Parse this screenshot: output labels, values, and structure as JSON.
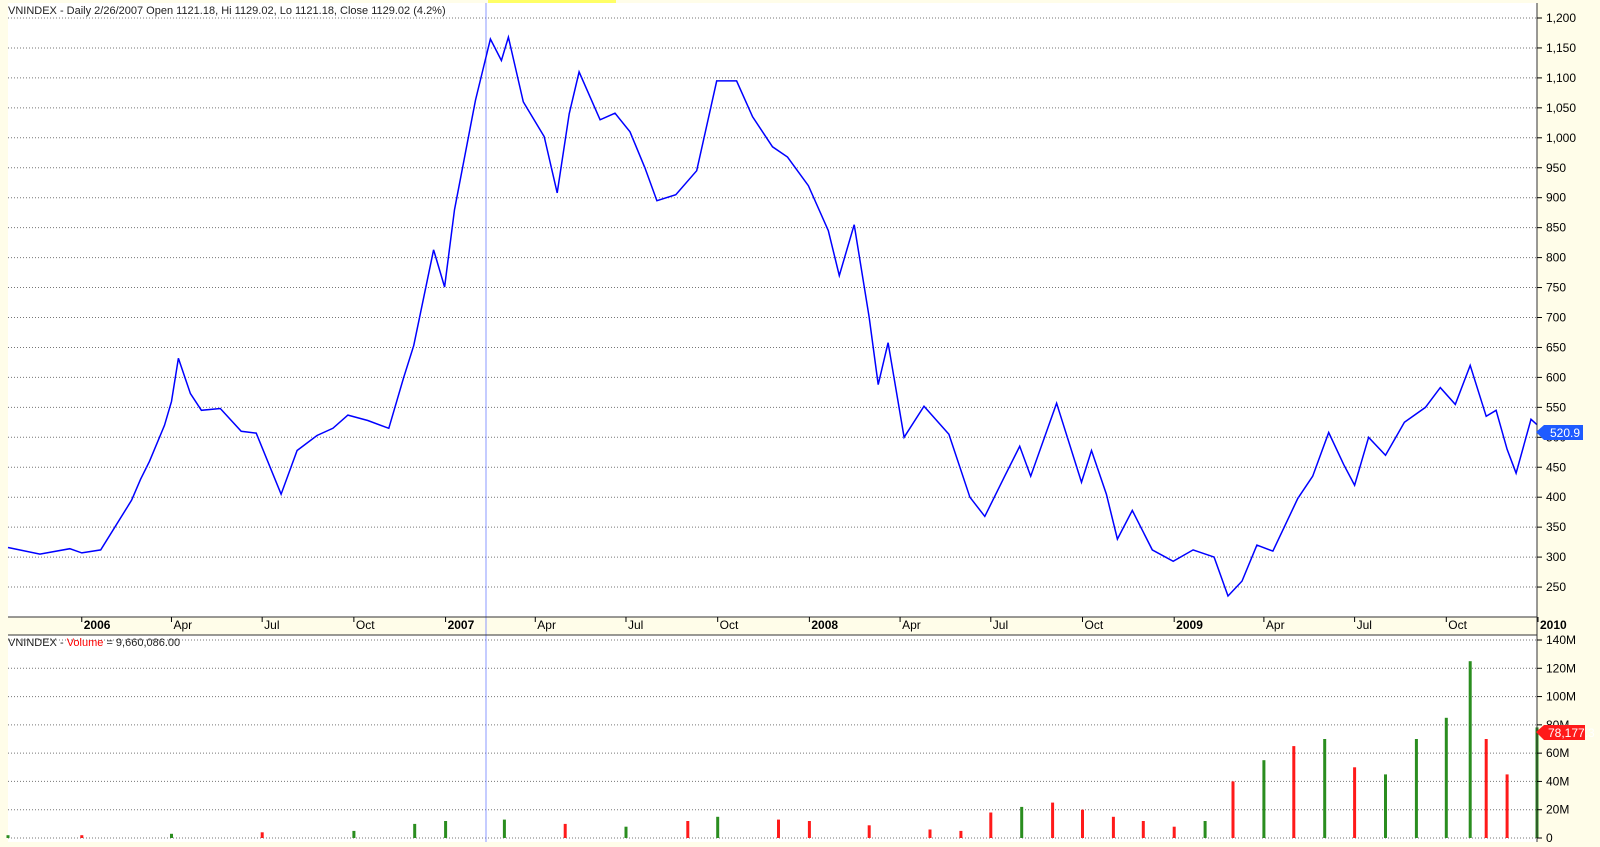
{
  "header": {
    "price_title": "VNINDEX - Daily 2/26/2007 Open 1121.18, Hi 1129.02, Lo 1121.18, Close 1129.02 (4.2%)",
    "volume_ticker": "VNINDEX -",
    "volume_label": "Volume",
    "volume_value": "= 9,660,086.00"
  },
  "colors": {
    "price_line": "#0000ff",
    "volume_up": "#2a8d1f",
    "volume_down": "#ff1a1a",
    "last_price_label": "#1e5bff",
    "last_volume_label": "#ff1a1a",
    "cursor": "#6f7fff"
  },
  "labels": {
    "last_price": "520.9",
    "last_volume": "78,177.3"
  },
  "axes": {
    "price_ticks": [
      "1,200",
      "1,150",
      "1,100",
      "1,050",
      "1,000",
      "950",
      "900",
      "850",
      "800",
      "750",
      "700",
      "650",
      "600",
      "550",
      "500",
      "450",
      "400",
      "350",
      "300",
      "250"
    ],
    "volume_ticks": [
      "140M",
      "120M",
      "100M",
      "80M",
      "60M",
      "40M",
      "20M",
      "0"
    ],
    "dates": [
      {
        "label": "2006",
        "year": true
      },
      {
        "label": "Apr",
        "year": false
      },
      {
        "label": "Jul",
        "year": false
      },
      {
        "label": "Oct",
        "year": false
      },
      {
        "label": "2007",
        "year": true
      },
      {
        "label": "Apr",
        "year": false
      },
      {
        "label": "Jul",
        "year": false
      },
      {
        "label": "Oct",
        "year": false
      },
      {
        "label": "2008",
        "year": true
      },
      {
        "label": "Apr",
        "year": false
      },
      {
        "label": "Jul",
        "year": false
      },
      {
        "label": "Oct",
        "year": false
      },
      {
        "label": "2009",
        "year": true
      },
      {
        "label": "Apr",
        "year": false
      },
      {
        "label": "Jul",
        "year": false
      },
      {
        "label": "Oct",
        "year": false
      },
      {
        "label": "2010",
        "year": true
      }
    ]
  },
  "chart_data": [
    {
      "type": "line",
      "title": "VNINDEX - Daily 2/26/2007 Open 1121.18, Hi 1129.02, Lo 1121.18, Close 1129.02 (4.2%)",
      "xlabel": "",
      "ylabel": "",
      "ylim": [
        200,
        1200
      ],
      "x_range": [
        "2005-10-19",
        "2009-12-31"
      ],
      "grid": true,
      "series": [
        {
          "name": "VNINDEX",
          "values": [
            [
              "2005-10-19",
              316
            ],
            [
              "2005-11-20",
              305
            ],
            [
              "2005-12-20",
              314
            ],
            [
              "2006-01-01",
              307
            ],
            [
              "2006-01-20",
              312
            ],
            [
              "2006-02-20",
              395
            ],
            [
              "2006-03-01",
              430
            ],
            [
              "2006-03-10",
              460
            ],
            [
              "2006-03-25",
              520
            ],
            [
              "2006-04-01",
              560
            ],
            [
              "2006-04-08",
              632
            ],
            [
              "2006-04-20",
              573
            ],
            [
              "2006-05-01",
              545
            ],
            [
              "2006-05-20",
              548
            ],
            [
              "2006-06-10",
              510
            ],
            [
              "2006-06-25",
              507
            ],
            [
              "2006-07-20",
              405
            ],
            [
              "2006-08-05",
              478
            ],
            [
              "2006-08-25",
              503
            ],
            [
              "2006-09-10",
              515
            ],
            [
              "2006-09-25",
              537
            ],
            [
              "2006-10-15",
              528
            ],
            [
              "2006-11-05",
              515
            ],
            [
              "2006-11-20",
              600
            ],
            [
              "2006-11-30",
              653
            ],
            [
              "2006-12-20",
              813
            ],
            [
              "2006-12-31",
              751
            ],
            [
              "2007-01-10",
              880
            ],
            [
              "2007-01-31",
              1063
            ],
            [
              "2007-02-15",
              1165
            ],
            [
              "2007-02-26",
              1129
            ],
            [
              "2007-03-05",
              1168
            ],
            [
              "2007-03-20",
              1060
            ],
            [
              "2007-04-10",
              1002
            ],
            [
              "2007-04-23",
              908
            ],
            [
              "2007-05-05",
              1040
            ],
            [
              "2007-05-15",
              1110
            ],
            [
              "2007-06-05",
              1030
            ],
            [
              "2007-06-20",
              1041
            ],
            [
              "2007-07-05",
              1010
            ],
            [
              "2007-07-20",
              950
            ],
            [
              "2007-08-01",
              895
            ],
            [
              "2007-08-20",
              905
            ],
            [
              "2007-09-10",
              945
            ],
            [
              "2007-09-30",
              1095
            ],
            [
              "2007-10-20",
              1095
            ],
            [
              "2007-11-05",
              1035
            ],
            [
              "2007-11-25",
              985
            ],
            [
              "2007-12-10",
              968
            ],
            [
              "2007-12-31",
              920
            ],
            [
              "2008-01-20",
              845
            ],
            [
              "2008-01-31",
              770
            ],
            [
              "2008-02-15",
              855
            ],
            [
              "2008-03-01",
              700
            ],
            [
              "2008-03-10",
              588
            ],
            [
              "2008-03-20",
              658
            ],
            [
              "2008-04-05",
              500
            ],
            [
              "2008-04-25",
              552
            ],
            [
              "2008-05-20",
              505
            ],
            [
              "2008-06-10",
              400
            ],
            [
              "2008-06-25",
              368
            ],
            [
              "2008-07-15",
              435
            ],
            [
              "2008-07-30",
              485
            ],
            [
              "2008-08-10",
              435
            ],
            [
              "2008-09-05",
              557
            ],
            [
              "2008-09-30",
              425
            ],
            [
              "2008-10-10",
              478
            ],
            [
              "2008-10-25",
              405
            ],
            [
              "2008-11-05",
              330
            ],
            [
              "2008-11-20",
              378
            ],
            [
              "2008-12-10",
              312
            ],
            [
              "2008-12-31",
              293
            ],
            [
              "2009-01-20",
              312
            ],
            [
              "2009-02-10",
              300
            ],
            [
              "2009-02-24",
              235
            ],
            [
              "2009-03-10",
              260
            ],
            [
              "2009-03-25",
              320
            ],
            [
              "2009-04-10",
              310
            ],
            [
              "2009-05-05",
              398
            ],
            [
              "2009-05-20",
              435
            ],
            [
              "2009-06-05",
              508
            ],
            [
              "2009-06-20",
              455
            ],
            [
              "2009-07-01",
              420
            ],
            [
              "2009-07-15",
              500
            ],
            [
              "2009-08-01",
              470
            ],
            [
              "2009-08-20",
              525
            ],
            [
              "2009-09-10",
              550
            ],
            [
              "2009-09-25",
              583
            ],
            [
              "2009-10-10",
              555
            ],
            [
              "2009-10-25",
              620
            ],
            [
              "2009-11-10",
              535
            ],
            [
              "2009-11-20",
              545
            ],
            [
              "2009-12-01",
              480
            ],
            [
              "2009-12-10",
              440
            ],
            [
              "2009-12-25",
              530
            ],
            [
              "2009-12-31",
              521
            ]
          ]
        }
      ]
    },
    {
      "type": "bar",
      "title": "VNINDEX - Volume = 9,660,086.00",
      "xlabel": "",
      "ylabel": "",
      "ylim": [
        0,
        140
      ],
      "x_range": [
        "2005-10-19",
        "2009-12-31"
      ],
      "grid": true,
      "series": [
        {
          "name": "Volume",
          "values": [
            [
              "2005-10-19",
              2
            ],
            [
              "2006-01-01",
              2
            ],
            [
              "2006-04-01",
              3
            ],
            [
              "2006-07-01",
              4
            ],
            [
              "2006-10-01",
              5
            ],
            [
              "2006-12-01",
              10
            ],
            [
              "2007-01-01",
              12
            ],
            [
              "2007-03-01",
              13
            ],
            [
              "2007-05-01",
              10
            ],
            [
              "2007-07-01",
              8
            ],
            [
              "2007-09-01",
              12
            ],
            [
              "2007-10-01",
              15
            ],
            [
              "2007-12-01",
              13
            ],
            [
              "2008-01-01",
              12
            ],
            [
              "2008-03-01",
              9
            ],
            [
              "2008-05-01",
              6
            ],
            [
              "2008-06-01",
              5
            ],
            [
              "2008-07-01",
              18
            ],
            [
              "2008-08-01",
              22
            ],
            [
              "2008-09-01",
              25
            ],
            [
              "2008-10-01",
              20
            ],
            [
              "2008-11-01",
              15
            ],
            [
              "2008-12-01",
              12
            ],
            [
              "2009-01-01",
              8
            ],
            [
              "2009-02-01",
              12
            ],
            [
              "2009-03-01",
              40
            ],
            [
              "2009-04-01",
              55
            ],
            [
              "2009-05-01",
              65
            ],
            [
              "2009-06-01",
              70
            ],
            [
              "2009-07-01",
              50
            ],
            [
              "2009-08-01",
              45
            ],
            [
              "2009-09-01",
              70
            ],
            [
              "2009-10-01",
              85
            ],
            [
              "2009-10-25",
              125
            ],
            [
              "2009-11-10",
              70
            ],
            [
              "2009-12-01",
              45
            ],
            [
              "2009-12-31",
              78.2
            ]
          ]
        }
      ]
    }
  ]
}
